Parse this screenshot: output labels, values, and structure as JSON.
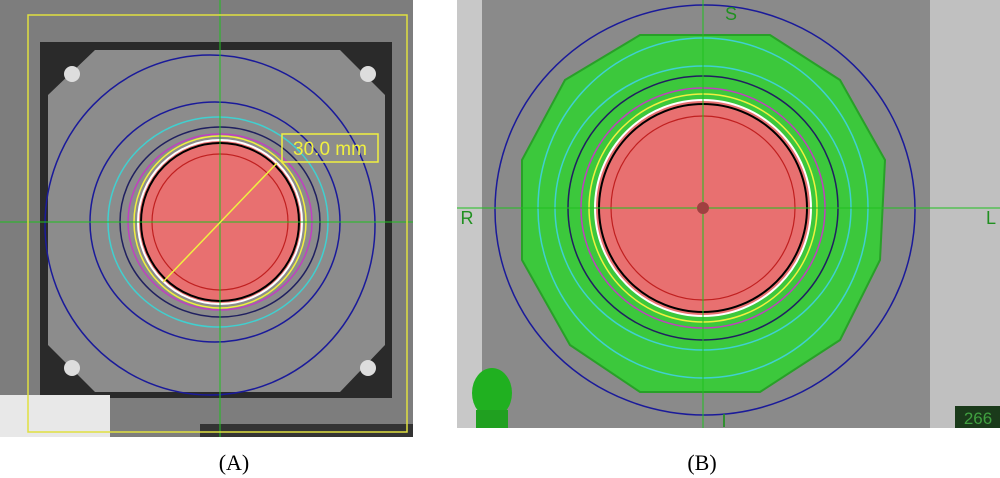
{
  "panels": [
    {
      "caption": "(A)",
      "measurement": "30.0 mm"
    },
    {
      "caption": "(B)",
      "orientation": {
        "top": "S",
        "left": "R",
        "right": "L",
        "bottom": "I"
      },
      "slice_number": "266"
    }
  ]
}
